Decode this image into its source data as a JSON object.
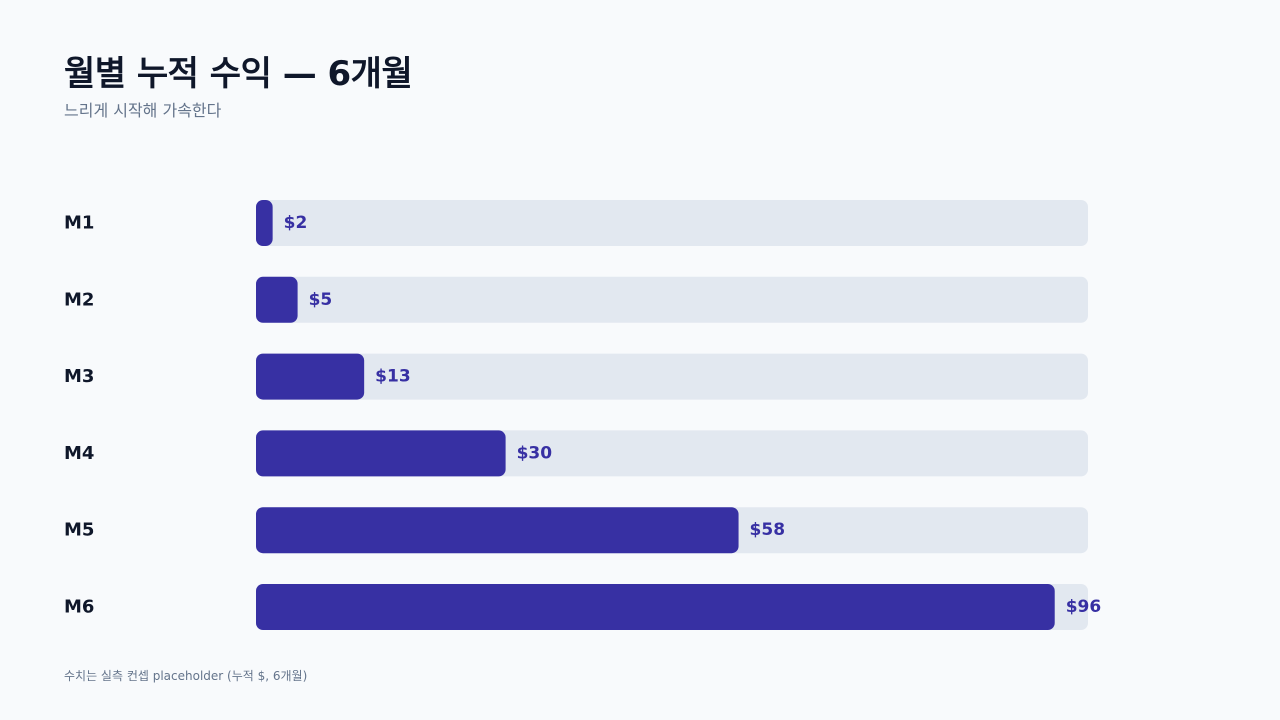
{
  "header": {
    "title": "월별 누적 수익 — 6개월",
    "subtitle": "느리게 시작해 가속한다"
  },
  "footnote": "수치는 실측 컨셉 placeholder (누적 $, 6개월)",
  "colors": {
    "bar": "#3730a3",
    "track": "#e2e8f0",
    "value_label": "#3730a3",
    "category_label": "#0f172a",
    "background": "#f8fafc"
  },
  "chart_data": {
    "type": "bar",
    "orientation": "horizontal",
    "title": "월별 누적 수익 — 6개월",
    "subtitle": "느리게 시작해 가속한다",
    "categories": [
      "M1",
      "M2",
      "M3",
      "M4",
      "M5",
      "M6"
    ],
    "values": [
      2,
      5,
      13,
      30,
      58,
      96
    ],
    "value_labels": [
      "$2",
      "$5",
      "$13",
      "$30",
      "$58",
      "$96"
    ],
    "xlim": [
      0,
      100
    ],
    "grid": false,
    "legend": "none"
  }
}
